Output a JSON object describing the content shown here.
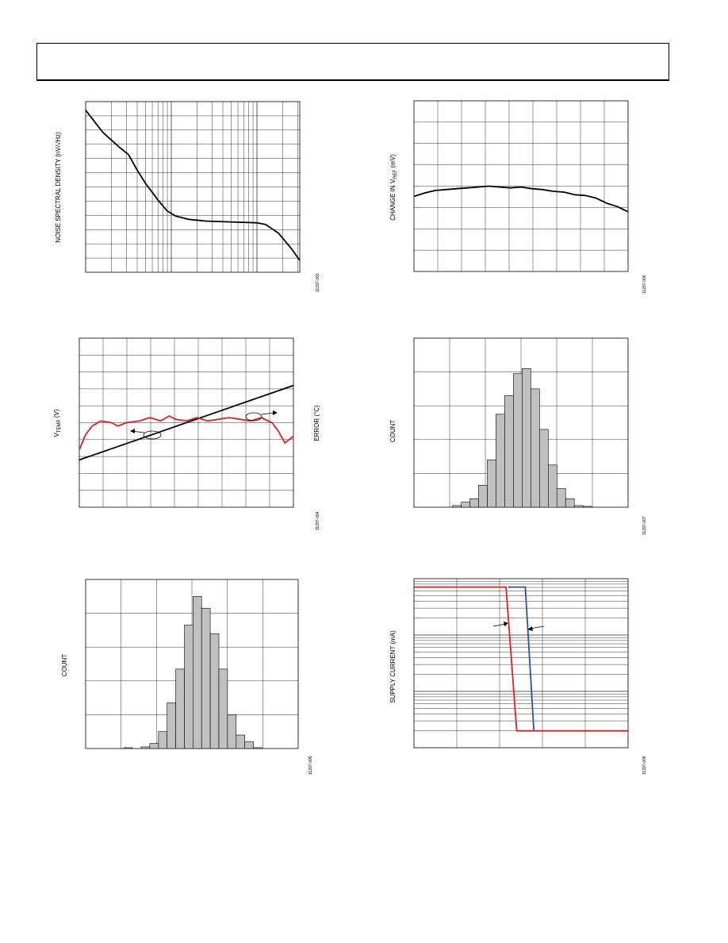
{
  "page": {
    "header": ""
  },
  "charts": {
    "noise": {
      "ylabel": "NOISE SPECTRAL DENSITY (nV/√Hz)",
      "fig_id": "11297-003"
    },
    "vref": {
      "ylabel_main": "CHANGE IN V",
      "ylabel_sub": "REF",
      "ylabel_unit": " (mV)",
      "fig_id": "11297-006"
    },
    "vtemp": {
      "ylabel_main": "V",
      "ylabel_sub": "TEMP",
      "ylabel_unit": " (V)",
      "y2label": "ERROR (°C)",
      "fig_id": "11297-004"
    },
    "hist_right": {
      "ylabel": "COUNT",
      "fig_id": "11297-007"
    },
    "hist_left": {
      "ylabel": "COUNT",
      "fig_id": "11297-005"
    },
    "supply": {
      "ylabel": "SUPPLY CURRENT (mA)",
      "fig_id": "11297-008"
    }
  },
  "chart_data": [
    {
      "id": "noise",
      "type": "line",
      "xscale": "log",
      "x_decades": 2.5,
      "y_gridlines": 12,
      "series": [
        {
          "color": "#000000",
          "points": [
            [
              0,
              0.05
            ],
            [
              0.2,
              0.18
            ],
            [
              0.4,
              0.27
            ],
            [
              0.5,
              0.31
            ],
            [
              0.6,
              0.4
            ],
            [
              0.7,
              0.48
            ],
            [
              0.85,
              0.58
            ],
            [
              0.95,
              0.64
            ],
            [
              1.05,
              0.67
            ],
            [
              1.2,
              0.69
            ],
            [
              1.4,
              0.7
            ],
            [
              1.7,
              0.705
            ],
            [
              2.0,
              0.71
            ],
            [
              2.1,
              0.72
            ],
            [
              2.25,
              0.77
            ],
            [
              2.4,
              0.86
            ],
            [
              2.5,
              0.93
            ]
          ]
        }
      ]
    },
    {
      "id": "vref",
      "type": "line",
      "x_gridlines": 9,
      "y_gridlines": 8,
      "series": [
        {
          "color": "#000000",
          "points": [
            [
              0,
              0.56
            ],
            [
              0.05,
              0.54
            ],
            [
              0.1,
              0.525
            ],
            [
              0.15,
              0.52
            ],
            [
              0.2,
              0.515
            ],
            [
              0.25,
              0.51
            ],
            [
              0.3,
              0.505
            ],
            [
              0.35,
              0.5
            ],
            [
              0.4,
              0.505
            ],
            [
              0.45,
              0.51
            ],
            [
              0.5,
              0.505
            ],
            [
              0.55,
              0.515
            ],
            [
              0.6,
              0.52
            ],
            [
              0.65,
              0.53
            ],
            [
              0.7,
              0.535
            ],
            [
              0.75,
              0.55
            ],
            [
              0.8,
              0.555
            ],
            [
              0.85,
              0.57
            ],
            [
              0.9,
              0.6
            ],
            [
              0.95,
              0.62
            ],
            [
              1.0,
              0.65
            ]
          ]
        }
      ]
    },
    {
      "id": "vtemp",
      "type": "line",
      "x_gridlines": 9,
      "y_gridlines": 10,
      "series": [
        {
          "color": "#000000",
          "points": [
            [
              0,
              0.72
            ],
            [
              1,
              0.28
            ]
          ]
        },
        {
          "color": "#e02020",
          "points": [
            [
              0,
              0.66
            ],
            [
              0.03,
              0.57
            ],
            [
              0.06,
              0.52
            ],
            [
              0.1,
              0.49
            ],
            [
              0.15,
              0.5
            ],
            [
              0.18,
              0.52
            ],
            [
              0.22,
              0.5
            ],
            [
              0.28,
              0.49
            ],
            [
              0.33,
              0.47
            ],
            [
              0.38,
              0.49
            ],
            [
              0.42,
              0.46
            ],
            [
              0.45,
              0.48
            ],
            [
              0.5,
              0.49
            ],
            [
              0.55,
              0.47
            ],
            [
              0.6,
              0.49
            ],
            [
              0.65,
              0.48
            ],
            [
              0.7,
              0.47
            ],
            [
              0.75,
              0.48
            ],
            [
              0.8,
              0.49
            ],
            [
              0.85,
              0.47
            ],
            [
              0.9,
              0.5
            ],
            [
              0.93,
              0.55
            ],
            [
              0.96,
              0.62
            ],
            [
              1.0,
              0.58
            ]
          ]
        }
      ]
    },
    {
      "id": "hist_right",
      "type": "bar",
      "x_gridlines": 6,
      "y_gridlines": 5,
      "values": [
        0.01,
        0.03,
        0.05,
        0.13,
        0.28,
        0.55,
        0.66,
        0.79,
        0.82,
        0.7,
        0.46,
        0.25,
        0.11,
        0.05,
        0.01,
        0.005
      ]
    },
    {
      "id": "hist_left",
      "type": "bar",
      "x_gridlines": 6,
      "y_gridlines": 5,
      "values": [
        0.005,
        0,
        0.01,
        0.03,
        0.1,
        0.27,
        0.47,
        0.73,
        0.9,
        0.83,
        0.68,
        0.47,
        0.2,
        0.08,
        0.04,
        0.005
      ]
    },
    {
      "id": "supply",
      "type": "line",
      "y_decades": 3,
      "x_gridlines": 5,
      "series": [
        {
          "color": "#e02020",
          "points": [
            [
              0,
              0.05
            ],
            [
              0.43,
              0.05
            ],
            [
              0.48,
              0.9
            ],
            [
              1.0,
              0.9
            ]
          ]
        },
        {
          "color": "#3050a0",
          "points": [
            [
              0.44,
              0.05
            ],
            [
              0.52,
              0.05
            ],
            [
              0.56,
              0.9
            ]
          ]
        }
      ]
    }
  ]
}
